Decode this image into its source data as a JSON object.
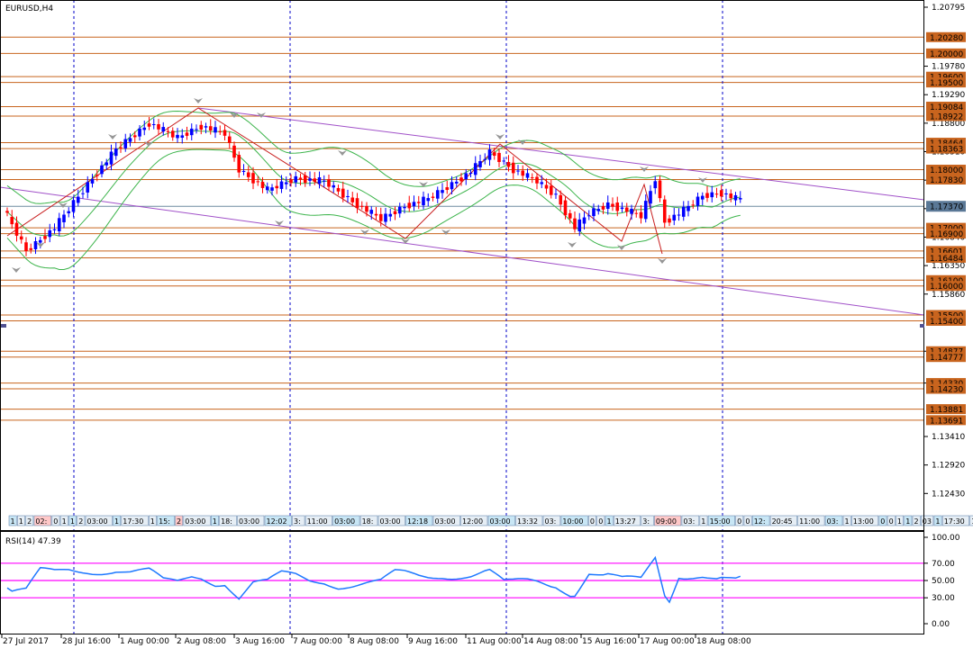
{
  "chart": {
    "title": "EURUSD,H4",
    "current_price": "1.17370",
    "price_ticks": [
      "1.20795",
      "1.19780",
      "1.19290",
      "1.18800",
      "1.18310",
      "1.17820",
      "1.17330",
      "1.16840",
      "1.16350",
      "1.15860",
      "1.14877",
      "1.14330",
      "1.13410",
      "1.12920",
      "1.12430"
    ],
    "level_labels": [
      "1.20280",
      "1.20000",
      "1.19600",
      "1.19500",
      "1.19084",
      "1.18922",
      "1.18464",
      "1.18363",
      "1.18000",
      "1.17830",
      "1.17000",
      "1.16900",
      "1.16601",
      "1.16484",
      "1.16100",
      "1.16000",
      "1.15500",
      "1.15400",
      "1.14877",
      "1.14777",
      "1.14330",
      "1.14230",
      "1.13881",
      "1.13691"
    ],
    "time_labels": [
      "27 Jul 2017",
      "28 Jul 16:00",
      "1 Aug 00:00",
      "2 Aug 08:00",
      "3 Aug 16:00",
      "7 Aug 00:00",
      "8 Aug 08:00",
      "9 Aug 16:00",
      "11 Aug 00:00",
      "14 Aug 08:00",
      "15 Aug 16:00",
      "17 Aug 00:00",
      "18 Aug 08:00"
    ],
    "event_labels": [
      "1",
      "1",
      "2",
      "02:",
      "0",
      "1",
      "1",
      "2",
      "03:00",
      "1",
      "17:30",
      "1",
      "15:",
      "2",
      "03:00",
      "1",
      "18:",
      "03:00",
      "12:02",
      "3:",
      "11:00",
      "03:00",
      "18:",
      "03:00",
      "12:18",
      "03:00",
      "12:00",
      "03:00",
      "13:32",
      "03:",
      "10:00",
      "0",
      "0",
      "1",
      "13:27",
      "3:",
      "09:00",
      "03:",
      "1",
      "15:00",
      "0",
      "0",
      "12:",
      "20:45",
      "11:00",
      "03:",
      "1",
      "13:00",
      "0",
      "0",
      "1",
      "1",
      "2",
      "03",
      "1",
      "17:30",
      "1",
      "17:0",
      "03",
      "1"
    ]
  },
  "rsi": {
    "label": "RSI(14) 47.39",
    "ticks": [
      "100.00",
      "70.00",
      "50.00",
      "30.00",
      "0.00"
    ]
  },
  "colors": {
    "bull": "#0000ff",
    "bear": "#ff0000",
    "level_line": "#c8641e",
    "level_label_bg": "#c8641e",
    "current_label_bg": "#5a7896",
    "channel": "#a050c8",
    "zigzag": "#c81e1e",
    "bands": "#3cb44b",
    "rsi_line": "#1e78ff",
    "rsi_levels": "#ff00ff",
    "grid_vertical": "#0000c8"
  }
}
